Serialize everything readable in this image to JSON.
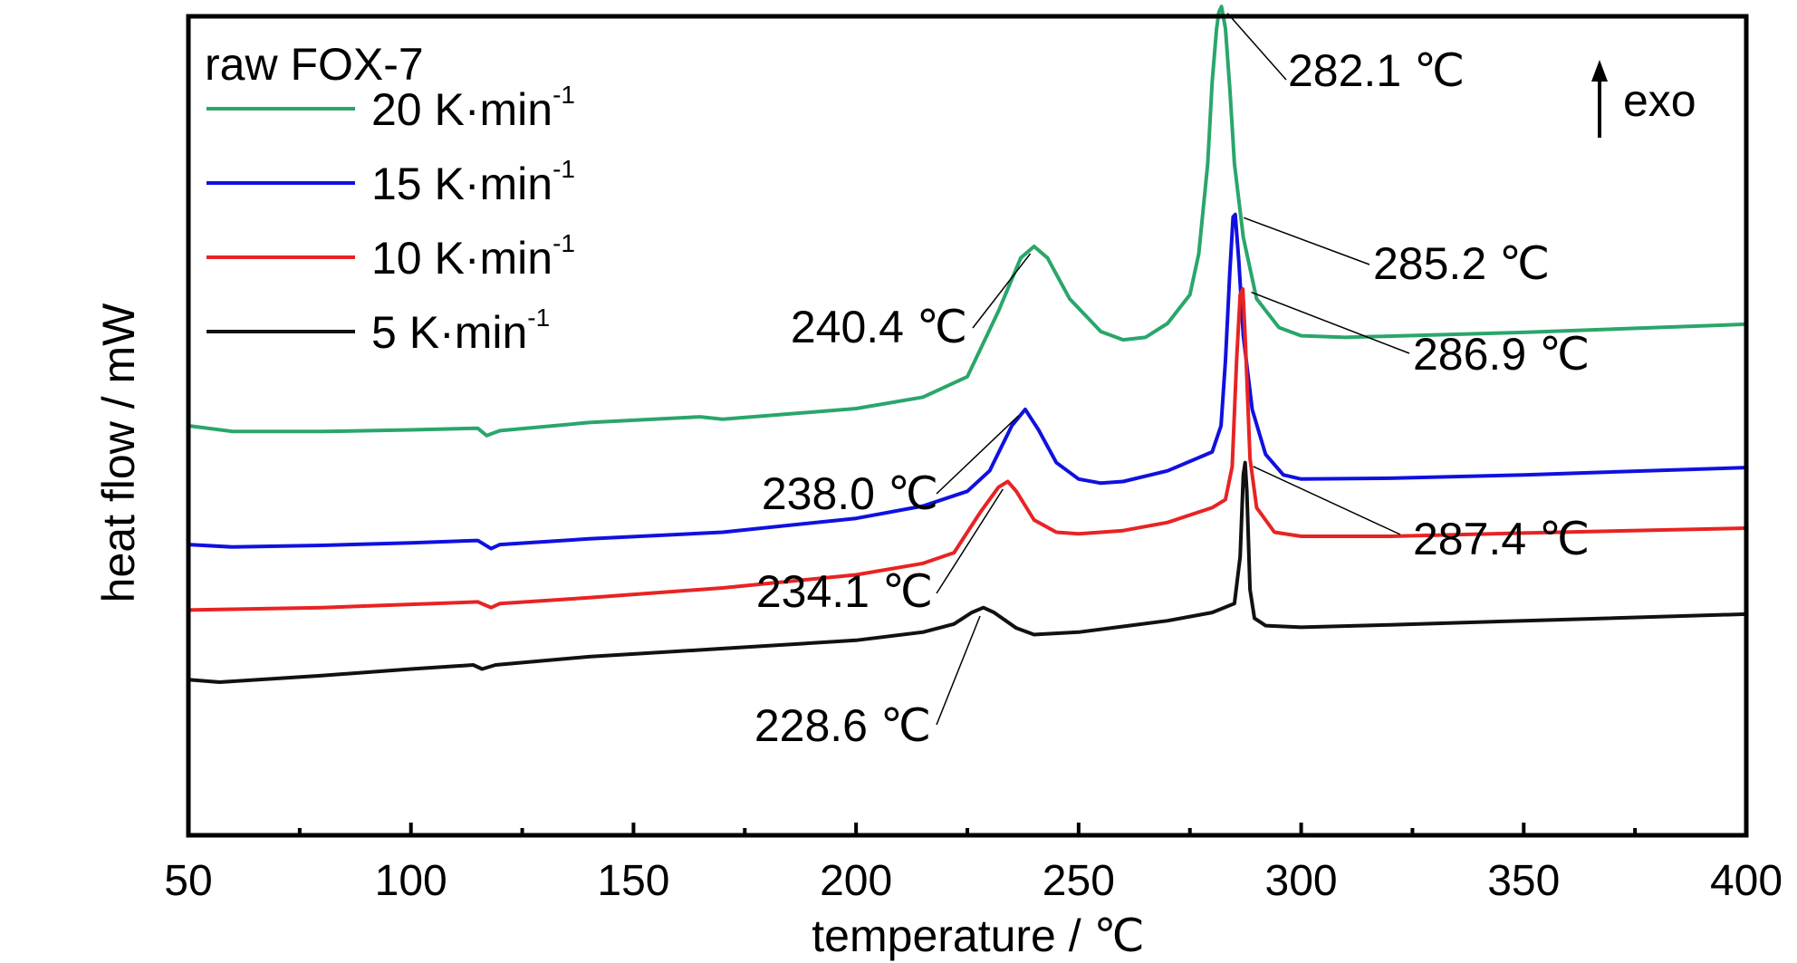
{
  "chart_data": {
    "type": "line",
    "title": "",
    "xlabel": "temperature / ℃",
    "ylabel": "heat flow / mW",
    "xlim": [
      50,
      400
    ],
    "x_ticks": [
      50,
      100,
      150,
      200,
      250,
      300,
      350,
      400
    ],
    "y_ticks": [],
    "grid": false,
    "legend_title": "raw FOX-7",
    "legend_position": "top-left",
    "direction_label": "exo",
    "series": [
      {
        "name": "20 K·min-1",
        "unit_base": "20 K·min",
        "unit_sup": "-1",
        "color": "#2aa66b",
        "points": [
          [
            50,
            0.5
          ],
          [
            60,
            0.493
          ],
          [
            80,
            0.493
          ],
          [
            100,
            0.495
          ],
          [
            115,
            0.497
          ],
          [
            117,
            0.488
          ],
          [
            120,
            0.494
          ],
          [
            140,
            0.504
          ],
          [
            165,
            0.511
          ],
          [
            170,
            0.508
          ],
          [
            200,
            0.521
          ],
          [
            215,
            0.535
          ],
          [
            225,
            0.56
          ],
          [
            232,
            0.64
          ],
          [
            237,
            0.705
          ],
          [
            240,
            0.719
          ],
          [
            243,
            0.705
          ],
          [
            248,
            0.655
          ],
          [
            255,
            0.615
          ],
          [
            260,
            0.605
          ],
          [
            265,
            0.608
          ],
          [
            270,
            0.625
          ],
          [
            275,
            0.66
          ],
          [
            277,
            0.71
          ],
          [
            279,
            0.82
          ],
          [
            280,
            0.92
          ],
          [
            281,
            0.985
          ],
          [
            281.5,
            1.005
          ],
          [
            282.1,
            1.012
          ],
          [
            283,
            0.985
          ],
          [
            284,
            0.91
          ],
          [
            285,
            0.82
          ],
          [
            287,
            0.73
          ],
          [
            290,
            0.655
          ],
          [
            295,
            0.62
          ],
          [
            300,
            0.61
          ],
          [
            310,
            0.608
          ],
          [
            350,
            0.614
          ],
          [
            400,
            0.624
          ]
        ]
      },
      {
        "name": "15 K·min-1",
        "unit_base": "15 K·min",
        "unit_sup": "-1",
        "color": "#1010e0",
        "points": [
          [
            50,
            0.355
          ],
          [
            60,
            0.352
          ],
          [
            80,
            0.354
          ],
          [
            100,
            0.357
          ],
          [
            115,
            0.36
          ],
          [
            118,
            0.35
          ],
          [
            120,
            0.355
          ],
          [
            140,
            0.362
          ],
          [
            170,
            0.37
          ],
          [
            200,
            0.387
          ],
          [
            215,
            0.402
          ],
          [
            225,
            0.42
          ],
          [
            230,
            0.445
          ],
          [
            235,
            0.5
          ],
          [
            238,
            0.52
          ],
          [
            241,
            0.495
          ],
          [
            245,
            0.455
          ],
          [
            250,
            0.435
          ],
          [
            255,
            0.43
          ],
          [
            260,
            0.432
          ],
          [
            270,
            0.445
          ],
          [
            280,
            0.468
          ],
          [
            282,
            0.5
          ],
          [
            283,
            0.58
          ],
          [
            284,
            0.69
          ],
          [
            284.7,
            0.755
          ],
          [
            285.2,
            0.758
          ],
          [
            286,
            0.7
          ],
          [
            287,
            0.61
          ],
          [
            289,
            0.52
          ],
          [
            292,
            0.465
          ],
          [
            296,
            0.44
          ],
          [
            300,
            0.435
          ],
          [
            320,
            0.436
          ],
          [
            350,
            0.44
          ],
          [
            400,
            0.449
          ]
        ]
      },
      {
        "name": "10 K·min-1",
        "unit_base": "10 K·min",
        "unit_sup": "-1",
        "color": "#e82323",
        "points": [
          [
            50,
            0.275
          ],
          [
            60,
            0.276
          ],
          [
            80,
            0.278
          ],
          [
            100,
            0.282
          ],
          [
            115,
            0.285
          ],
          [
            118,
            0.278
          ],
          [
            120,
            0.283
          ],
          [
            140,
            0.29
          ],
          [
            170,
            0.302
          ],
          [
            200,
            0.318
          ],
          [
            215,
            0.332
          ],
          [
            222,
            0.345
          ],
          [
            228,
            0.395
          ],
          [
            232,
            0.425
          ],
          [
            234.1,
            0.432
          ],
          [
            236,
            0.42
          ],
          [
            240,
            0.385
          ],
          [
            245,
            0.37
          ],
          [
            250,
            0.368
          ],
          [
            260,
            0.372
          ],
          [
            270,
            0.382
          ],
          [
            280,
            0.4
          ],
          [
            283,
            0.41
          ],
          [
            284.5,
            0.45
          ],
          [
            285.5,
            0.58
          ],
          [
            286.3,
            0.66
          ],
          [
            286.9,
            0.667
          ],
          [
            287.5,
            0.6
          ],
          [
            288.5,
            0.46
          ],
          [
            290,
            0.4
          ],
          [
            294,
            0.37
          ],
          [
            300,
            0.365
          ],
          [
            320,
            0.365
          ],
          [
            350,
            0.369
          ],
          [
            400,
            0.375
          ]
        ]
      },
      {
        "name": "5 K·min-1",
        "unit_base": "5 K·min",
        "unit_sup": "-1",
        "color": "#111111",
        "points": [
          [
            50,
            0.19
          ],
          [
            57,
            0.187
          ],
          [
            80,
            0.195
          ],
          [
            100,
            0.203
          ],
          [
            114,
            0.208
          ],
          [
            116,
            0.203
          ],
          [
            119,
            0.208
          ],
          [
            140,
            0.218
          ],
          [
            170,
            0.228
          ],
          [
            200,
            0.238
          ],
          [
            215,
            0.248
          ],
          [
            222,
            0.258
          ],
          [
            226,
            0.272
          ],
          [
            228.6,
            0.278
          ],
          [
            231,
            0.272
          ],
          [
            236,
            0.253
          ],
          [
            240,
            0.245
          ],
          [
            250,
            0.248
          ],
          [
            260,
            0.255
          ],
          [
            270,
            0.262
          ],
          [
            280,
            0.272
          ],
          [
            285,
            0.283
          ],
          [
            286.3,
            0.34
          ],
          [
            287,
            0.44
          ],
          [
            287.4,
            0.455
          ],
          [
            287.8,
            0.42
          ],
          [
            288.5,
            0.3
          ],
          [
            289.5,
            0.265
          ],
          [
            292,
            0.256
          ],
          [
            300,
            0.254
          ],
          [
            320,
            0.257
          ],
          [
            350,
            0.262
          ],
          [
            400,
            0.27
          ]
        ]
      }
    ],
    "annotations": [
      {
        "text": "282.1 ℃",
        "series": 0,
        "x": 282.1,
        "y": 1.012
      },
      {
        "text": "285.2 ℃",
        "series": 1,
        "x": 285.2,
        "y": 0.758
      },
      {
        "text": "286.9 ℃",
        "series": 2,
        "x": 286.9,
        "y": 0.667
      },
      {
        "text": "240.4 ℃",
        "series": 0,
        "x": 240.4,
        "y": 0.719
      },
      {
        "text": "238.0 ℃",
        "series": 1,
        "x": 238.0,
        "y": 0.52
      },
      {
        "text": "234.1 ℃",
        "series": 2,
        "x": 234.1,
        "y": 0.432
      },
      {
        "text": "287.4 ℃",
        "series": 3,
        "x": 287.4,
        "y": 0.455
      },
      {
        "text": "228.6 ℃",
        "series": 3,
        "x": 228.6,
        "y": 0.278
      }
    ]
  }
}
